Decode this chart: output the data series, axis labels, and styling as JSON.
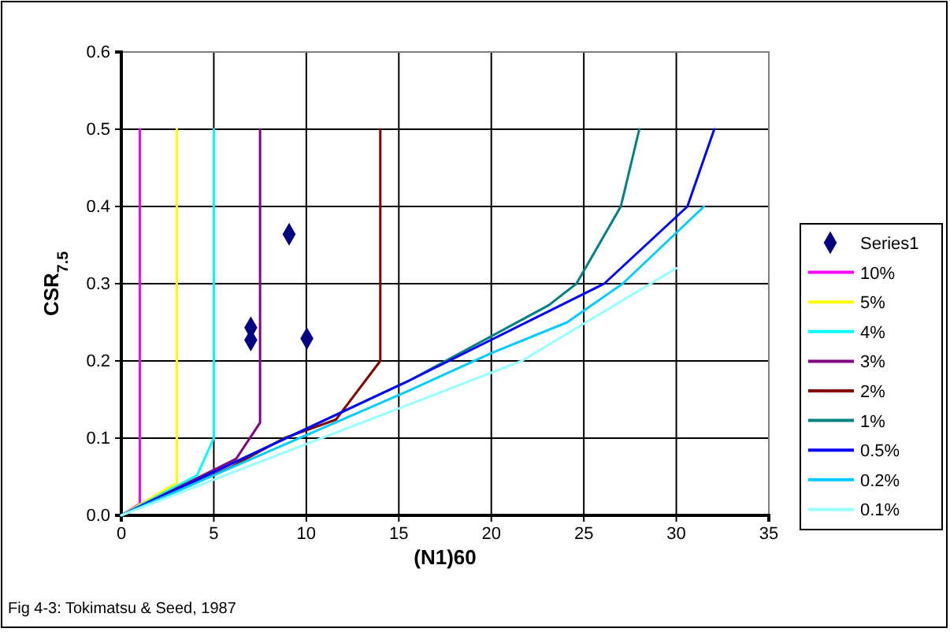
{
  "chart_data": {
    "type": "line",
    "xlabel": "(N1)60",
    "ylabel": "CSR$_{7.5}$",
    "xlim": [
      0,
      35
    ],
    "xticks": [
      0,
      5,
      10,
      15,
      20,
      25,
      30,
      35
    ],
    "ylim": [
      0,
      0.6
    ],
    "yticks": [
      {
        "value": 0,
        "label": "0.0"
      },
      0.1,
      0.2,
      0.3,
      0.4,
      0.5,
      0.6
    ],
    "grid": true,
    "legend": "right",
    "line_style": "solid",
    "annotations": [
      "Fig 4-3: Tokimatsu & Seed, 1987"
    ],
    "series": [
      {
        "name": "Series1",
        "type": "scatter",
        "marker": "diamond",
        "color": "#000080",
        "x": [
          9.07,
          7.0,
          7.0,
          10.03
        ],
        "values": [
          0.364,
          0.243,
          0.227,
          0.229
        ]
      },
      {
        "name": "10%",
        "color": "#ff00ff",
        "x": [
          0,
          1,
          1
        ],
        "values": [
          0,
          0.015,
          0.5
        ]
      },
      {
        "name": "5%",
        "color": "#ffff00",
        "x": [
          0,
          3,
          3
        ],
        "values": [
          0,
          0.042,
          0.5
        ]
      },
      {
        "name": "4%",
        "color": "#00ffff",
        "x": [
          0,
          4.1,
          5,
          5
        ],
        "values": [
          0,
          0.052,
          0.1,
          0.5
        ]
      },
      {
        "name": "3%",
        "color": "#800080",
        "x": [
          0,
          6.2,
          7.5,
          7.5
        ],
        "values": [
          0,
          0.073,
          0.12,
          0.5
        ]
      },
      {
        "name": "2%",
        "color": "#800000",
        "x": [
          0,
          5.9,
          8.8,
          11.6,
          14,
          14
        ],
        "values": [
          0,
          0.062,
          0.1,
          0.124,
          0.2,
          0.5
        ]
      },
      {
        "name": "1%",
        "color": "#008080",
        "x": [
          0,
          15.6,
          23.1,
          24.6,
          27,
          28
        ],
        "values": [
          0,
          0.175,
          0.272,
          0.3,
          0.4,
          0.5
        ]
      },
      {
        "name": "0.5%",
        "color": "#0000ff",
        "x": [
          0,
          15.6,
          26.1,
          30.6,
          32.05
        ],
        "values": [
          0,
          0.175,
          0.3,
          0.4,
          0.5
        ]
      },
      {
        "name": "0.2%",
        "color": "#00ccff",
        "x": [
          0,
          15.6,
          20,
          24.1,
          27.1,
          31.5
        ],
        "values": [
          0,
          0.162,
          0.21,
          0.25,
          0.3,
          0.4
        ]
      },
      {
        "name": "0.1%",
        "color": "#99ffff",
        "x": [
          0,
          15.6,
          21.65,
          30
        ],
        "values": [
          0,
          0.144,
          0.2,
          0.32
        ]
      }
    ]
  }
}
